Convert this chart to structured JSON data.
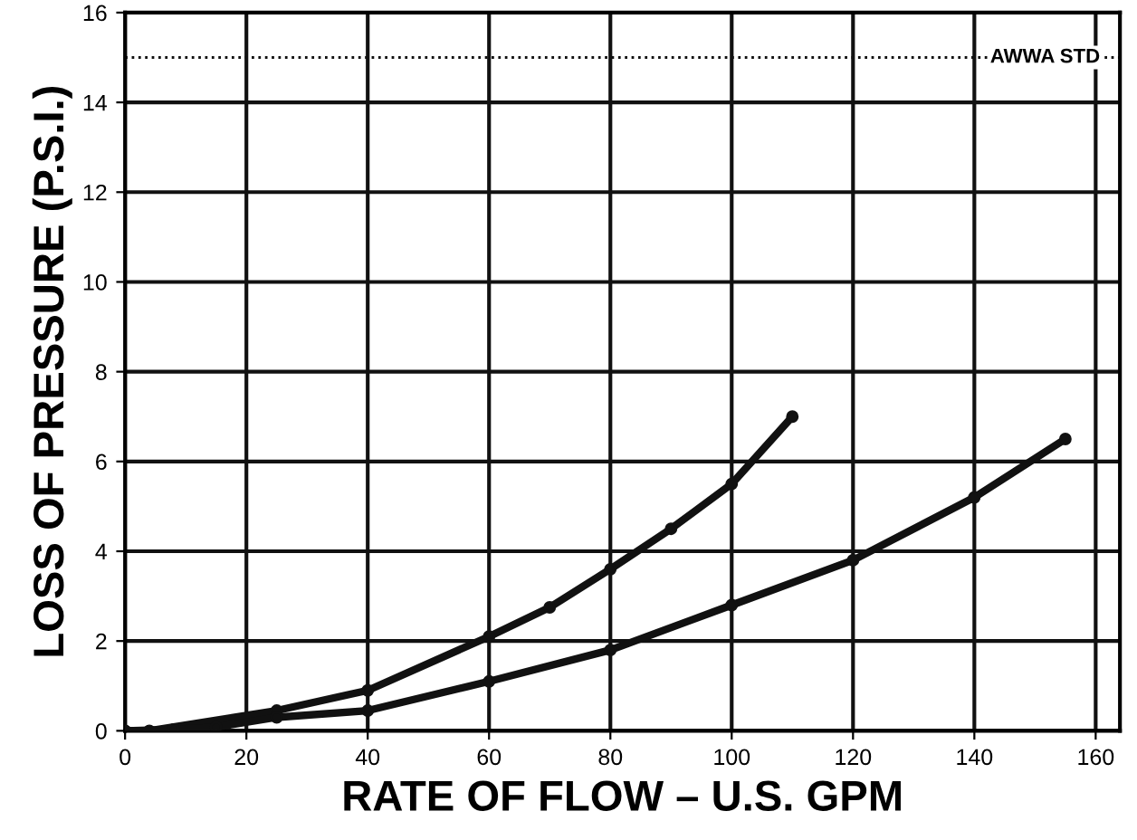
{
  "chart_data": {
    "type": "line",
    "xlabel": "RATE OF FLOW – U.S. GPM",
    "ylabel": "LOSS OF PRESSURE (P.S.I.)",
    "xlim": [
      0,
      164
    ],
    "xticks": [
      0,
      20,
      40,
      60,
      80,
      100,
      120,
      140,
      160
    ],
    "ylim": [
      0,
      16
    ],
    "yticks": [
      0,
      2,
      4,
      6,
      8,
      10,
      12,
      14,
      16
    ],
    "grid": true,
    "marker": "circle",
    "line_style": "solid",
    "series": [
      {
        "color": "#111111",
        "x": [
          0,
          4,
          25,
          40,
          60,
          70,
          80,
          90,
          100,
          110
        ],
        "values": [
          0,
          0,
          0.45,
          0.9,
          2.1,
          2.75,
          3.6,
          4.5,
          5.5,
          7.0
        ]
      },
      {
        "color": "#111111",
        "x": [
          0,
          8,
          15,
          25,
          40,
          60,
          80,
          100,
          120,
          140,
          155
        ],
        "values": [
          0,
          0.03,
          0.08,
          0.3,
          0.45,
          1.1,
          1.8,
          2.8,
          3.8,
          5.2,
          6.5
        ]
      }
    ],
    "ref_lines": [
      {
        "axis": "y",
        "value": 15,
        "label": "AWWA STD",
        "color": "#111111",
        "line_style": "dotted"
      }
    ]
  }
}
